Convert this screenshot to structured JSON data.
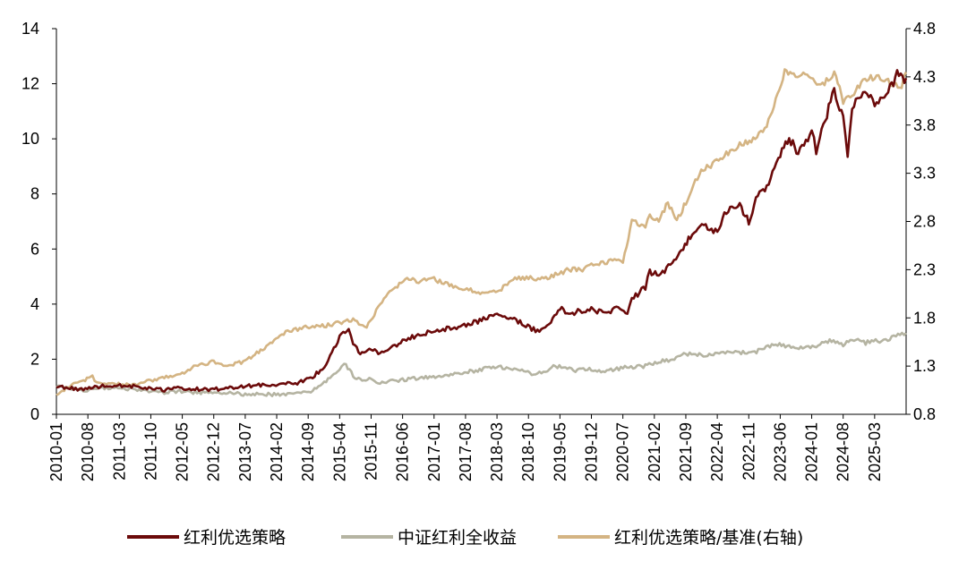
{
  "chart_data": {
    "type": "line",
    "title": "",
    "xlabel": "",
    "ylabel": "",
    "y_left_lim": [
      0,
      14
    ],
    "y_left_ticks": [
      0,
      2,
      4,
      6,
      8,
      10,
      12,
      14
    ],
    "y_right_lim": [
      0.8,
      4.8
    ],
    "y_right_ticks": [
      "0.8",
      "1.3",
      "1.8",
      "2.3",
      "2.8",
      "3.3",
      "3.8",
      "4.3",
      "4.8"
    ],
    "x_start": "2010-01",
    "x_end": "2025-10",
    "x_ticks": [
      "2010-01",
      "2010-08",
      "2011-03",
      "2011-10",
      "2012-05",
      "2012-12",
      "2013-07",
      "2014-02",
      "2014-09",
      "2015-04",
      "2015-11",
      "2016-06",
      "2017-01",
      "2017-08",
      "2018-03",
      "2018-10",
      "2019-05",
      "2019-12",
      "2020-07",
      "2021-02",
      "2021-09",
      "2022-04",
      "2022-11",
      "2023-06",
      "2024-01",
      "2024-08",
      "2025-03"
    ],
    "grid": false,
    "legend_position": "bottom",
    "series": [
      {
        "name": "红利优选策略",
        "axis": "left",
        "color": "#6b0a0a",
        "points": [
          [
            "2010-01",
            1.0
          ],
          [
            "2010-04",
            0.95
          ],
          [
            "2010-07",
            0.9
          ],
          [
            "2010-10",
            1.0
          ],
          [
            "2011-01",
            1.05
          ],
          [
            "2011-04",
            1.05
          ],
          [
            "2011-07",
            1.0
          ],
          [
            "2011-10",
            0.92
          ],
          [
            "2012-01",
            0.88
          ],
          [
            "2012-04",
            0.95
          ],
          [
            "2012-07",
            0.93
          ],
          [
            "2012-10",
            0.9
          ],
          [
            "2013-01",
            0.92
          ],
          [
            "2013-04",
            0.98
          ],
          [
            "2013-07",
            1.02
          ],
          [
            "2013-10",
            1.05
          ],
          [
            "2014-01",
            1.08
          ],
          [
            "2014-04",
            1.1
          ],
          [
            "2014-07",
            1.15
          ],
          [
            "2014-10",
            1.35
          ],
          [
            "2015-01",
            1.8
          ],
          [
            "2015-04",
            2.8
          ],
          [
            "2015-06",
            3.1
          ],
          [
            "2015-07",
            2.5
          ],
          [
            "2015-09",
            2.2
          ],
          [
            "2015-11",
            2.4
          ],
          [
            "2016-01",
            2.2
          ],
          [
            "2016-03",
            2.4
          ],
          [
            "2016-06",
            2.65
          ],
          [
            "2016-09",
            2.85
          ],
          [
            "2016-12",
            3.0
          ],
          [
            "2017-03",
            3.1
          ],
          [
            "2017-06",
            3.15
          ],
          [
            "2017-09",
            3.3
          ],
          [
            "2017-12",
            3.45
          ],
          [
            "2018-03",
            3.6
          ],
          [
            "2018-06",
            3.5
          ],
          [
            "2018-09",
            3.25
          ],
          [
            "2018-12",
            3.0
          ],
          [
            "2019-03",
            3.3
          ],
          [
            "2019-05",
            3.9
          ],
          [
            "2019-07",
            3.6
          ],
          [
            "2019-09",
            3.75
          ],
          [
            "2019-12",
            3.8
          ],
          [
            "2020-03",
            3.7
          ],
          [
            "2020-06",
            3.85
          ],
          [
            "2020-08",
            3.6
          ],
          [
            "2020-09",
            4.2
          ],
          [
            "2020-12",
            4.6
          ],
          [
            "2021-01",
            5.2
          ],
          [
            "2021-03",
            5.0
          ],
          [
            "2021-06",
            5.5
          ],
          [
            "2021-08",
            6.0
          ],
          [
            "2021-10",
            6.4
          ],
          [
            "2022-01",
            6.9
          ],
          [
            "2022-04",
            6.6
          ],
          [
            "2022-06",
            7.4
          ],
          [
            "2022-09",
            7.6
          ],
          [
            "2022-11",
            7.0
          ],
          [
            "2023-01",
            8.0
          ],
          [
            "2023-03",
            8.3
          ],
          [
            "2023-06",
            9.5
          ],
          [
            "2023-08",
            10.0
          ],
          [
            "2023-10",
            9.5
          ],
          [
            "2024-01",
            10.2
          ],
          [
            "2024-02",
            9.6
          ],
          [
            "2024-04",
            10.6
          ],
          [
            "2024-06",
            11.8
          ],
          [
            "2024-08",
            10.8
          ],
          [
            "2024-09",
            9.4
          ],
          [
            "2024-10",
            11.2
          ],
          [
            "2024-12",
            11.7
          ],
          [
            "2025-03",
            11.3
          ],
          [
            "2025-06",
            11.8
          ],
          [
            "2025-08",
            12.3
          ],
          [
            "2025-10",
            12.2
          ]
        ]
      },
      {
        "name": "中证红利全收益",
        "axis": "left",
        "color": "#b5b4a2",
        "points": [
          [
            "2010-01",
            1.0
          ],
          [
            "2010-04",
            0.95
          ],
          [
            "2010-07",
            0.85
          ],
          [
            "2010-10",
            0.95
          ],
          [
            "2011-01",
            0.95
          ],
          [
            "2011-04",
            0.93
          ],
          [
            "2011-07",
            0.9
          ],
          [
            "2011-10",
            0.82
          ],
          [
            "2012-01",
            0.78
          ],
          [
            "2012-04",
            0.84
          ],
          [
            "2012-07",
            0.8
          ],
          [
            "2012-10",
            0.78
          ],
          [
            "2013-01",
            0.8
          ],
          [
            "2013-04",
            0.78
          ],
          [
            "2013-07",
            0.72
          ],
          [
            "2013-10",
            0.74
          ],
          [
            "2014-01",
            0.72
          ],
          [
            "2014-04",
            0.72
          ],
          [
            "2014-07",
            0.76
          ],
          [
            "2014-10",
            0.85
          ],
          [
            "2015-01",
            1.2
          ],
          [
            "2015-04",
            1.65
          ],
          [
            "2015-05",
            1.9
          ],
          [
            "2015-07",
            1.4
          ],
          [
            "2015-09",
            1.2
          ],
          [
            "2015-11",
            1.3
          ],
          [
            "2016-01",
            1.15
          ],
          [
            "2016-06",
            1.25
          ],
          [
            "2016-12",
            1.35
          ],
          [
            "2017-06",
            1.45
          ],
          [
            "2017-12",
            1.65
          ],
          [
            "2018-03",
            1.75
          ],
          [
            "2018-06",
            1.65
          ],
          [
            "2018-09",
            1.55
          ],
          [
            "2018-12",
            1.45
          ],
          [
            "2019-04",
            1.75
          ],
          [
            "2019-08",
            1.6
          ],
          [
            "2019-12",
            1.65
          ],
          [
            "2020-03",
            1.55
          ],
          [
            "2020-07",
            1.7
          ],
          [
            "2020-12",
            1.75
          ],
          [
            "2021-03",
            1.9
          ],
          [
            "2021-06",
            2.0
          ],
          [
            "2021-09",
            2.2
          ],
          [
            "2021-12",
            2.15
          ],
          [
            "2022-04",
            2.2
          ],
          [
            "2022-08",
            2.3
          ],
          [
            "2022-11",
            2.2
          ],
          [
            "2023-02",
            2.35
          ],
          [
            "2023-05",
            2.55
          ],
          [
            "2023-08",
            2.45
          ],
          [
            "2023-11",
            2.4
          ],
          [
            "2024-02",
            2.45
          ],
          [
            "2024-05",
            2.7
          ],
          [
            "2024-08",
            2.55
          ],
          [
            "2024-10",
            2.75
          ],
          [
            "2025-01",
            2.6
          ],
          [
            "2025-05",
            2.7
          ],
          [
            "2025-10",
            2.95
          ]
        ]
      },
      {
        "name": "红利优选策略/基准(右轴)",
        "axis": "right",
        "color": "#d4b483",
        "points": [
          [
            "2010-01",
            1.0
          ],
          [
            "2010-04",
            1.1
          ],
          [
            "2010-07",
            1.15
          ],
          [
            "2010-09",
            1.2
          ],
          [
            "2010-10",
            1.12
          ],
          [
            "2011-01",
            1.12
          ],
          [
            "2011-06",
            1.1
          ],
          [
            "2011-10",
            1.15
          ],
          [
            "2012-01",
            1.18
          ],
          [
            "2012-05",
            1.22
          ],
          [
            "2012-08",
            1.3
          ],
          [
            "2012-12",
            1.35
          ],
          [
            "2013-03",
            1.3
          ],
          [
            "2013-07",
            1.35
          ],
          [
            "2013-10",
            1.45
          ],
          [
            "2014-01",
            1.55
          ],
          [
            "2014-04",
            1.65
          ],
          [
            "2014-08",
            1.7
          ],
          [
            "2014-10",
            1.7
          ],
          [
            "2015-01",
            1.72
          ],
          [
            "2015-04",
            1.75
          ],
          [
            "2015-07",
            1.78
          ],
          [
            "2015-10",
            1.7
          ],
          [
            "2016-01",
            1.95
          ],
          [
            "2016-04",
            2.1
          ],
          [
            "2016-07",
            2.2
          ],
          [
            "2016-10",
            2.18
          ],
          [
            "2017-01",
            2.2
          ],
          [
            "2017-04",
            2.15
          ],
          [
            "2017-07",
            2.1
          ],
          [
            "2017-10",
            2.08
          ],
          [
            "2018-01",
            2.05
          ],
          [
            "2018-04",
            2.1
          ],
          [
            "2018-07",
            2.2
          ],
          [
            "2018-10",
            2.22
          ],
          [
            "2019-01",
            2.2
          ],
          [
            "2019-04",
            2.25
          ],
          [
            "2019-07",
            2.3
          ],
          [
            "2019-10",
            2.3
          ],
          [
            "2019-12",
            2.35
          ],
          [
            "2020-03",
            2.38
          ],
          [
            "2020-06",
            2.4
          ],
          [
            "2020-07",
            2.38
          ],
          [
            "2020-09",
            2.8
          ],
          [
            "2020-12",
            2.75
          ],
          [
            "2021-01",
            2.85
          ],
          [
            "2021-03",
            2.8
          ],
          [
            "2021-05",
            3.0
          ],
          [
            "2021-07",
            2.8
          ],
          [
            "2021-09",
            3.0
          ],
          [
            "2021-12",
            3.3
          ],
          [
            "2022-03",
            3.4
          ],
          [
            "2022-06",
            3.5
          ],
          [
            "2022-09",
            3.6
          ],
          [
            "2022-12",
            3.65
          ],
          [
            "2023-03",
            3.8
          ],
          [
            "2023-05",
            4.05
          ],
          [
            "2023-07",
            4.35
          ],
          [
            "2023-09",
            4.3
          ],
          [
            "2023-12",
            4.35
          ],
          [
            "2024-03",
            4.2
          ],
          [
            "2024-06",
            4.35
          ],
          [
            "2024-08",
            4.05
          ],
          [
            "2024-10",
            4.1
          ],
          [
            "2024-12",
            4.25
          ],
          [
            "2025-03",
            4.3
          ],
          [
            "2025-06",
            4.25
          ],
          [
            "2025-09",
            4.2
          ],
          [
            "2025-10",
            4.35
          ]
        ]
      }
    ]
  }
}
